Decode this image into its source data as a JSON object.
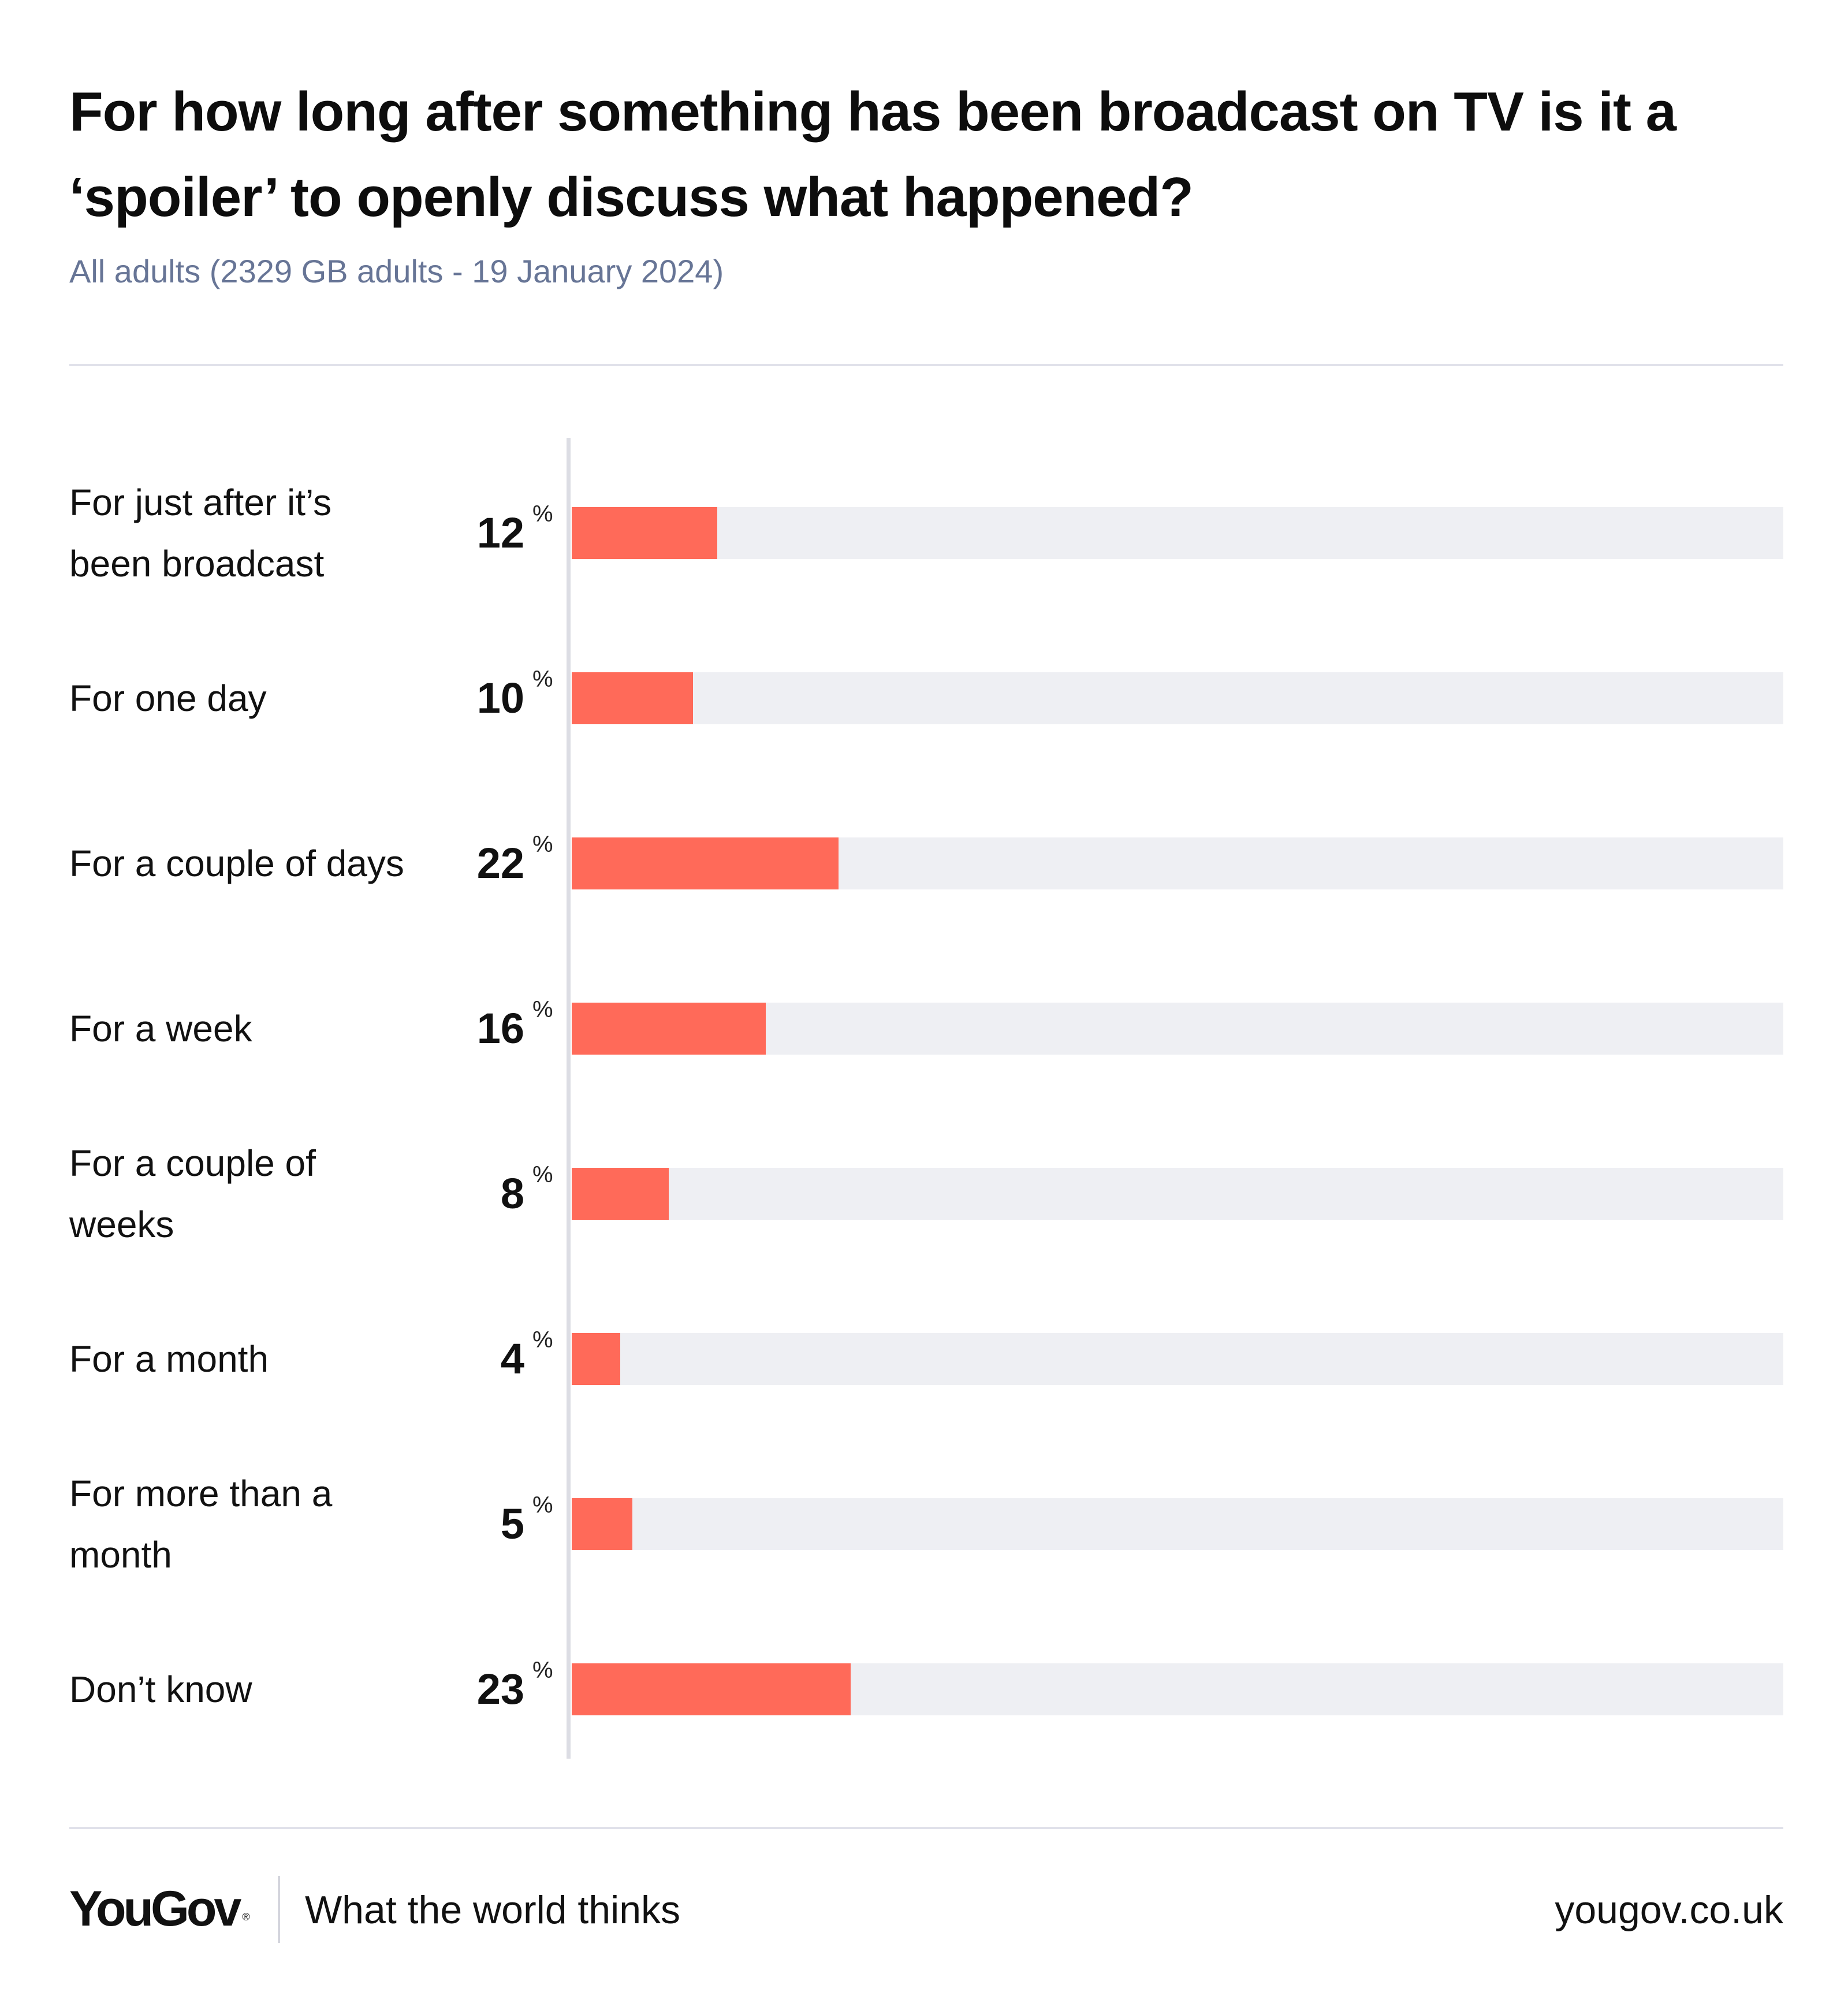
{
  "chart_data": {
    "type": "bar",
    "orientation": "horizontal",
    "title": "For how long after something has been broadcast on TV is it a ‘spoiler’ to openly discuss what happened?",
    "subtitle": "All adults (2329 GB adults - 19 January 2024)",
    "categories": [
      "For just after it’s been broadcast",
      "For one day",
      "For a couple of days",
      "For a week",
      "For a couple of weeks",
      "For a month",
      "For more than a month",
      "Don’t know"
    ],
    "values": [
      12,
      10,
      22,
      16,
      8,
      4,
      5,
      23
    ],
    "unit": "%",
    "xlim": [
      0,
      100
    ],
    "grid": false,
    "legend": "none",
    "colors": {
      "bar": "#ff6a59",
      "track": "#eeeff3",
      "axis": "#dcdde4"
    }
  },
  "footer": {
    "logo": "YouGov",
    "logo_mark": "®",
    "tagline": "What the world thinks",
    "site": "yougov.co.uk"
  }
}
